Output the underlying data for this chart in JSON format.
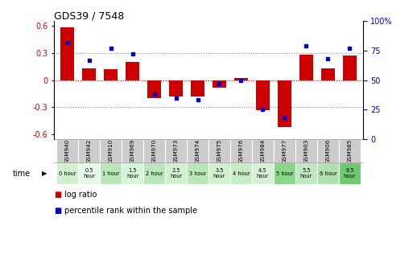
{
  "title": "GDS39 / 7548",
  "samples": [
    "GSM940",
    "GSM942",
    "GSM910",
    "GSM969",
    "GSM970",
    "GSM973",
    "GSM974",
    "GSM975",
    "GSM976",
    "GSM984",
    "GSM977",
    "GSM903",
    "GSM906",
    "GSM985"
  ],
  "time_labels": [
    "0 hour",
    "0.5\nhour",
    "1 hour",
    "1.5\nhour",
    "2 hour",
    "2.5\nhour",
    "3 hour",
    "3.5\nhour",
    "4 hour",
    "4.5\nhour",
    "5 hour",
    "5.5\nhour",
    "6 hour",
    "6.5\nhour"
  ],
  "log_ratio": [
    0.58,
    0.13,
    0.12,
    0.2,
    -0.2,
    -0.18,
    -0.18,
    -0.08,
    0.02,
    -0.33,
    -0.52,
    0.28,
    0.13,
    0.27
  ],
  "percentile": [
    82,
    67,
    77,
    72,
    38,
    35,
    33,
    47,
    50,
    25,
    18,
    79,
    68,
    77
  ],
  "time_colors": [
    "#d0f0d0",
    "#e8f8e8",
    "#b8e8b8",
    "#d8f4d8",
    "#b8e8b8",
    "#d0f0d0",
    "#b8e8b8",
    "#d0f0d0",
    "#c8ecc8",
    "#d8f0d8",
    "#88d888",
    "#c0e8c0",
    "#b0e0b0",
    "#70c870"
  ],
  "bar_color": "#cc0000",
  "dot_color": "#0000cc",
  "ylim_left": [
    -0.65,
    0.65
  ],
  "ylim_right": [
    0,
    100
  ],
  "yticks_left": [
    -0.6,
    -0.3,
    0.0,
    0.3,
    0.6
  ],
  "yticks_right": [
    0,
    25,
    50,
    75,
    100
  ],
  "sample_bg": "#cccccc",
  "bar_width": 0.6
}
